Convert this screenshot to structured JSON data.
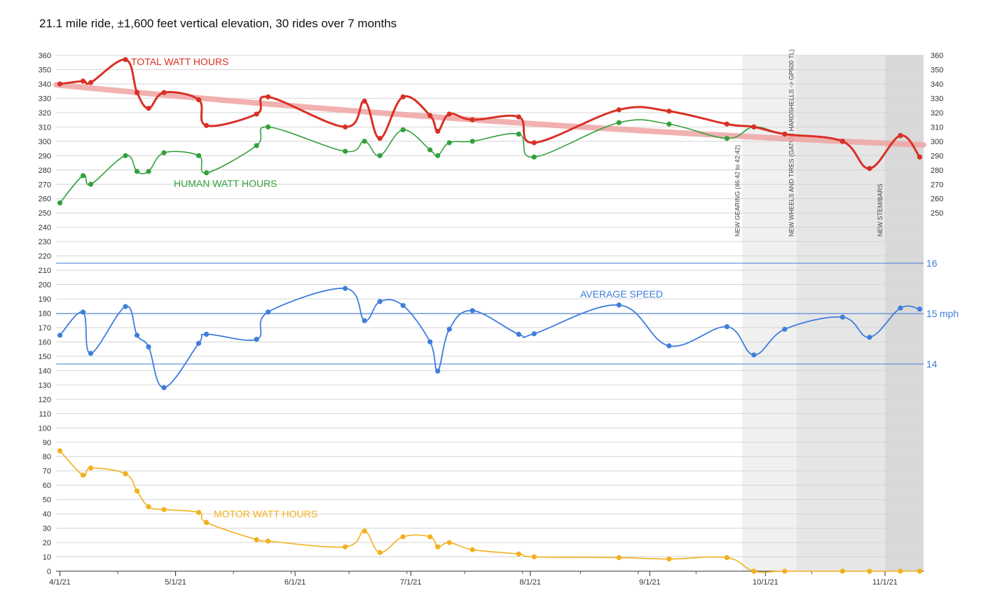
{
  "chart_data": {
    "type": "line",
    "title": "21.1 mile ride, ±1,600 feet vertical elevation, 30 rides over 7 months",
    "x_type": "date",
    "x_range": [
      "2021-03-31",
      "2021-11-11"
    ],
    "x_ticks": [
      {
        "date": "2021-04-01",
        "label": "4/1/21"
      },
      {
        "date": "2021-05-01",
        "label": "5/1/21"
      },
      {
        "date": "2021-06-01",
        "label": "6/1/21"
      },
      {
        "date": "2021-07-01",
        "label": "7/1/21"
      },
      {
        "date": "2021-08-01",
        "label": "8/1/21"
      },
      {
        "date": "2021-09-01",
        "label": "9/1/21"
      },
      {
        "date": "2021-10-01",
        "label": "10/1/21"
      },
      {
        "date": "2021-11-01",
        "label": "11/1/21"
      }
    ],
    "left_axis": {
      "ylim": [
        0,
        360
      ],
      "tick_step": 10
    },
    "right_axis_watts": {
      "ticks": [
        250,
        260,
        270,
        280,
        290,
        300,
        310,
        320,
        330,
        340,
        350,
        360
      ]
    },
    "right_axis_speed": {
      "ticks": [
        {
          "value": 14,
          "label": "14"
        },
        {
          "value": 15,
          "label": "15"
        },
        {
          "value": 16,
          "label": "16"
        }
      ],
      "unit": "mph"
    },
    "grid": true,
    "series": [
      {
        "name": "TOTAL WATT HOURS",
        "color": "#d93025",
        "axis": "watts",
        "points": [
          {
            "x": "2021-04-01",
            "y": 340
          },
          {
            "x": "2021-04-07",
            "y": 342
          },
          {
            "x": "2021-04-09",
            "y": 341
          },
          {
            "x": "2021-04-18",
            "y": 357
          },
          {
            "x": "2021-04-21",
            "y": 334
          },
          {
            "x": "2021-04-24",
            "y": 323
          },
          {
            "x": "2021-04-28",
            "y": 334
          },
          {
            "x": "2021-05-07",
            "y": 329
          },
          {
            "x": "2021-05-09",
            "y": 311
          },
          {
            "x": "2021-05-22",
            "y": 319
          },
          {
            "x": "2021-05-25",
            "y": 331
          },
          {
            "x": "2021-06-14",
            "y": 310
          },
          {
            "x": "2021-06-19",
            "y": 328
          },
          {
            "x": "2021-06-23",
            "y": 302
          },
          {
            "x": "2021-06-29",
            "y": 331
          },
          {
            "x": "2021-07-06",
            "y": 318
          },
          {
            "x": "2021-07-08",
            "y": 307
          },
          {
            "x": "2021-07-11",
            "y": 319
          },
          {
            "x": "2021-07-17",
            "y": 315
          },
          {
            "x": "2021-07-29",
            "y": 317
          },
          {
            "x": "2021-08-02",
            "y": 299
          },
          {
            "x": "2021-08-24",
            "y": 322
          },
          {
            "x": "2021-09-06",
            "y": 321
          },
          {
            "x": "2021-09-21",
            "y": 312
          },
          {
            "x": "2021-09-28",
            "y": 310
          },
          {
            "x": "2021-10-06",
            "y": 305
          },
          {
            "x": "2021-10-21",
            "y": 300
          },
          {
            "x": "2021-10-28",
            "y": 281
          },
          {
            "x": "2021-11-05",
            "y": 304
          },
          {
            "x": "2021-11-10",
            "y": 289
          }
        ]
      },
      {
        "name": "HUMAN WATT HOURS",
        "color": "#34a03c",
        "axis": "watts",
        "points": [
          {
            "x": "2021-04-01",
            "y": 257
          },
          {
            "x": "2021-04-07",
            "y": 276
          },
          {
            "x": "2021-04-09",
            "y": 270
          },
          {
            "x": "2021-04-18",
            "y": 290
          },
          {
            "x": "2021-04-21",
            "y": 279
          },
          {
            "x": "2021-04-24",
            "y": 279
          },
          {
            "x": "2021-04-28",
            "y": 292
          },
          {
            "x": "2021-05-07",
            "y": 290
          },
          {
            "x": "2021-05-09",
            "y": 278
          },
          {
            "x": "2021-05-22",
            "y": 297
          },
          {
            "x": "2021-05-25",
            "y": 310
          },
          {
            "x": "2021-06-14",
            "y": 293
          },
          {
            "x": "2021-06-19",
            "y": 300
          },
          {
            "x": "2021-06-23",
            "y": 290
          },
          {
            "x": "2021-06-29",
            "y": 308
          },
          {
            "x": "2021-07-06",
            "y": 294
          },
          {
            "x": "2021-07-08",
            "y": 290
          },
          {
            "x": "2021-07-11",
            "y": 299
          },
          {
            "x": "2021-07-17",
            "y": 300
          },
          {
            "x": "2021-07-29",
            "y": 305
          },
          {
            "x": "2021-08-02",
            "y": 289
          },
          {
            "x": "2021-08-24",
            "y": 313
          },
          {
            "x": "2021-09-06",
            "y": 312
          },
          {
            "x": "2021-09-21",
            "y": 302
          },
          {
            "x": "2021-09-28",
            "y": 310
          },
          {
            "x": "2021-10-06",
            "y": 305
          },
          {
            "x": "2021-10-21",
            "y": 300
          },
          {
            "x": "2021-10-28",
            "y": 281
          },
          {
            "x": "2021-11-05",
            "y": 304
          },
          {
            "x": "2021-11-10",
            "y": 289
          }
        ]
      },
      {
        "name": "MOTOR WATT HOURS",
        "color": "#f2b01e",
        "axis": "watts",
        "points": [
          {
            "x": "2021-04-01",
            "y": 84
          },
          {
            "x": "2021-04-07",
            "y": 67
          },
          {
            "x": "2021-04-09",
            "y": 72
          },
          {
            "x": "2021-04-18",
            "y": 68
          },
          {
            "x": "2021-04-21",
            "y": 56
          },
          {
            "x": "2021-04-24",
            "y": 45
          },
          {
            "x": "2021-04-28",
            "y": 43
          },
          {
            "x": "2021-05-07",
            "y": 41
          },
          {
            "x": "2021-05-09",
            "y": 34
          },
          {
            "x": "2021-05-22",
            "y": 22
          },
          {
            "x": "2021-05-25",
            "y": 21
          },
          {
            "x": "2021-06-14",
            "y": 17
          },
          {
            "x": "2021-06-19",
            "y": 28
          },
          {
            "x": "2021-06-23",
            "y": 13
          },
          {
            "x": "2021-06-29",
            "y": 24
          },
          {
            "x": "2021-07-06",
            "y": 24
          },
          {
            "x": "2021-07-08",
            "y": 17
          },
          {
            "x": "2021-07-11",
            "y": 20
          },
          {
            "x": "2021-07-17",
            "y": 15
          },
          {
            "x": "2021-07-29",
            "y": 12
          },
          {
            "x": "2021-08-02",
            "y": 10
          },
          {
            "x": "2021-08-24",
            "y": 9.5
          },
          {
            "x": "2021-09-06",
            "y": 8.5
          },
          {
            "x": "2021-09-21",
            "y": 9.5
          },
          {
            "x": "2021-09-28",
            "y": 0
          },
          {
            "x": "2021-10-06",
            "y": 0
          },
          {
            "x": "2021-10-21",
            "y": 0
          },
          {
            "x": "2021-10-28",
            "y": 0
          },
          {
            "x": "2021-11-05",
            "y": 0
          },
          {
            "x": "2021-11-10",
            "y": 0
          }
        ]
      },
      {
        "name": "AVERAGE SPEED",
        "color": "#3f7ddb",
        "axis": "speed",
        "points": [
          {
            "x": "2021-04-01",
            "y": 14.57
          },
          {
            "x": "2021-04-07",
            "y": 15.03
          },
          {
            "x": "2021-04-09",
            "y": 14.21
          },
          {
            "x": "2021-04-18",
            "y": 15.14
          },
          {
            "x": "2021-04-21",
            "y": 14.57
          },
          {
            "x": "2021-04-24",
            "y": 14.34
          },
          {
            "x": "2021-04-28",
            "y": 13.53
          },
          {
            "x": "2021-05-07",
            "y": 14.41
          },
          {
            "x": "2021-05-09",
            "y": 14.59
          },
          {
            "x": "2021-05-22",
            "y": 14.49
          },
          {
            "x": "2021-05-25",
            "y": 15.03
          },
          {
            "x": "2021-06-14",
            "y": 15.5
          },
          {
            "x": "2021-06-19",
            "y": 14.86
          },
          {
            "x": "2021-06-23",
            "y": 15.24
          },
          {
            "x": "2021-06-29",
            "y": 15.16
          },
          {
            "x": "2021-07-06",
            "y": 14.44
          },
          {
            "x": "2021-07-08",
            "y": 13.86
          },
          {
            "x": "2021-07-11",
            "y": 14.69
          },
          {
            "x": "2021-07-17",
            "y": 15.06
          },
          {
            "x": "2021-07-29",
            "y": 14.59
          },
          {
            "x": "2021-08-02",
            "y": 14.6
          },
          {
            "x": "2021-08-24",
            "y": 15.17
          },
          {
            "x": "2021-09-06",
            "y": 14.36
          },
          {
            "x": "2021-09-21",
            "y": 14.74
          },
          {
            "x": "2021-09-28",
            "y": 14.18
          },
          {
            "x": "2021-10-06",
            "y": 14.69
          },
          {
            "x": "2021-10-21",
            "y": 14.93
          },
          {
            "x": "2021-10-28",
            "y": 14.53
          },
          {
            "x": "2021-11-05",
            "y": 15.11
          },
          {
            "x": "2021-11-10",
            "y": 15.09
          }
        ]
      }
    ],
    "trendline": {
      "series": "TOTAL WATT HOURS",
      "color": "#f0a3a3"
    },
    "annotations": [
      {
        "date": "2021-09-25",
        "label": "NEW GEARING (46:42 to 42:42)"
      },
      {
        "date": "2021-10-09",
        "label": "NEW WHEELS AND TIRES (GATOR HARDSHELLS -> GP500 TL)"
      },
      {
        "date": "2021-11-01",
        "label": "NEW STEM/BARS"
      }
    ],
    "shaded_regions": [
      {
        "from": "2021-09-25",
        "to": "2021-10-09",
        "color": "#f0f0f0"
      },
      {
        "from": "2021-10-09",
        "to": "2021-11-01",
        "color": "#e6e6e6"
      },
      {
        "from": "2021-11-01",
        "to": "2021-11-11",
        "color": "#d9d9d9"
      }
    ]
  }
}
